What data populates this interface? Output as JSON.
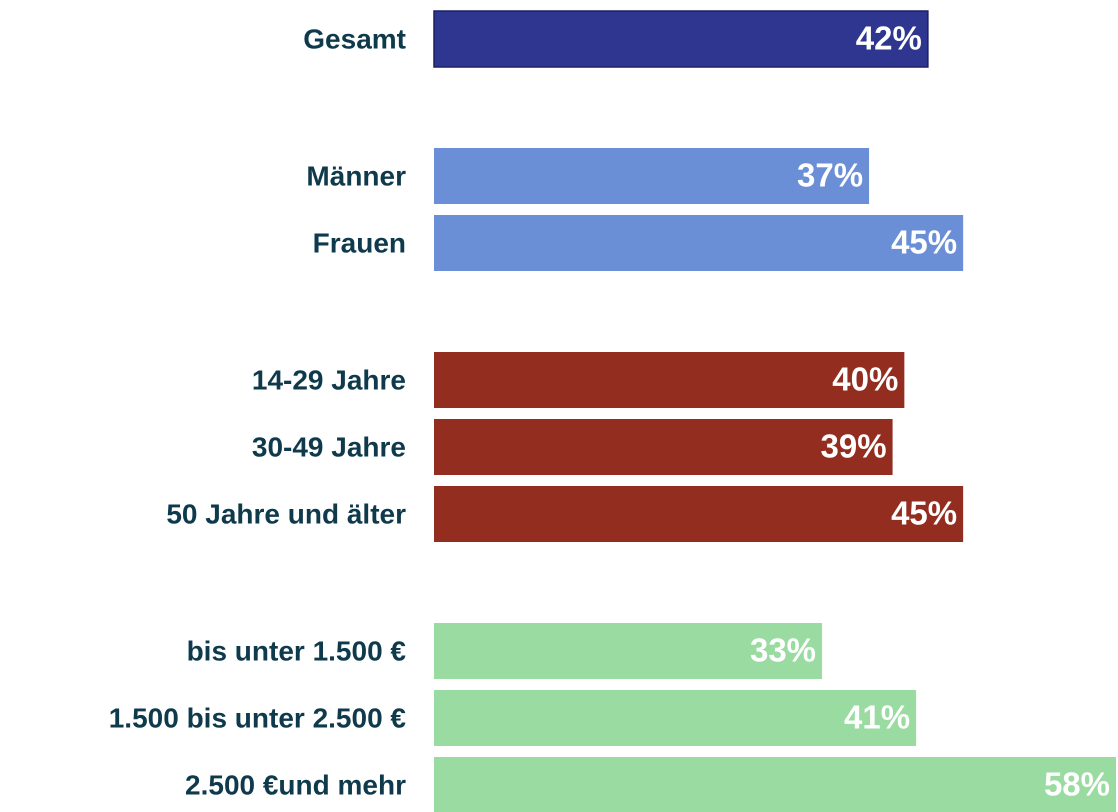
{
  "chart_data": {
    "type": "bar",
    "orientation": "horizontal",
    "categories": [
      "Gesamt",
      "Männer",
      "Frauen",
      "14-29 Jahre",
      "30-49 Jahre",
      "50 Jahre und älter",
      "bis unter 1.500 €",
      "1.500 bis unter 2.500 €",
      "2.500 €und mehr"
    ],
    "values": [
      42,
      37,
      45,
      40,
      39,
      45,
      33,
      41,
      58
    ],
    "value_labels": [
      "42%",
      "37%",
      "45%",
      "40%",
      "39%",
      "45%",
      "33%",
      "41%",
      "58%"
    ],
    "colors": [
      "#2e3690",
      "#6b8fd6",
      "#6b8fd6",
      "#922d20",
      "#922d20",
      "#922d20",
      "#99dba0",
      "#99dba0",
      "#99dba0"
    ]
  }
}
